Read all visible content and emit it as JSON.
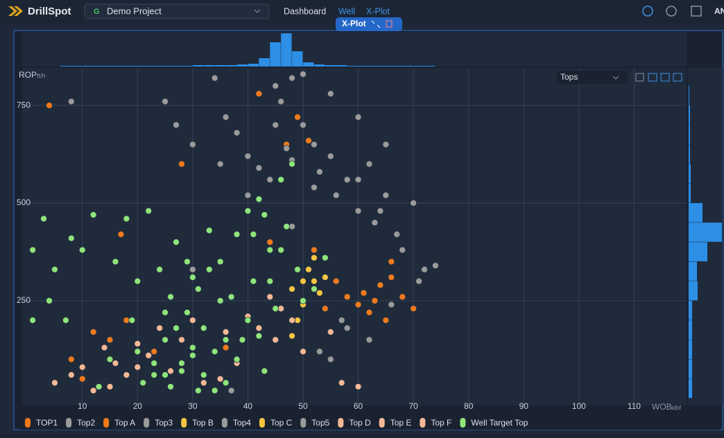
{
  "app": {
    "logo": "DrillSpot",
    "project_badge": "G",
    "project": "Demo Project",
    "nav": [
      "Dashboard",
      "Well",
      "X-Plot"
    ],
    "user": "AN"
  },
  "panel": {
    "tab": "X-Plot",
    "dropdown": "Tops"
  },
  "chart_data": {
    "type": "scatter",
    "x_label": "WOB",
    "x_unit": "klbf",
    "y_label": "ROP",
    "y_unit": "ft/h",
    "xlim": [
      -0.9,
      119.5
    ],
    "ylim": [
      -18,
      846
    ],
    "xticks": [
      10,
      20,
      30,
      40,
      50,
      60,
      70,
      80,
      90,
      100,
      110
    ],
    "yticks": [
      250,
      500,
      750
    ],
    "grid": true,
    "series": [
      {
        "name": "TOP1",
        "color": "#f07a1a",
        "x": [
          50,
          52,
          54,
          56,
          58,
          60,
          61,
          62,
          63,
          64,
          65,
          66,
          68,
          70,
          72,
          45,
          47,
          49,
          51,
          4,
          42,
          28,
          17
        ],
        "values": [
          250,
          280,
          230,
          300,
          260,
          240,
          270,
          220,
          250,
          290,
          200,
          310,
          260,
          230,
          330,
          700,
          650,
          720,
          660,
          750,
          780,
          600,
          420
        ]
      },
      {
        "name": "Top2",
        "color": "#9b9b9b",
        "x": [
          25,
          27,
          30,
          34,
          36,
          38,
          40,
          42,
          44,
          45,
          46,
          47,
          48,
          50,
          52,
          53,
          55,
          56,
          58,
          60,
          62,
          63,
          65,
          67,
          68,
          70,
          71,
          72,
          74,
          45,
          50,
          55,
          60,
          65,
          40,
          35,
          8,
          57,
          48,
          52
        ],
        "values": [
          760,
          700,
          650,
          820,
          720,
          680,
          620,
          590,
          560,
          700,
          760,
          640,
          610,
          700,
          650,
          580,
          620,
          520,
          560,
          480,
          600,
          450,
          520,
          420,
          380,
          500,
          300,
          330,
          340,
          800,
          830,
          780,
          720,
          650,
          520,
          600,
          760,
          200,
          440,
          540
        ]
      },
      {
        "name": "Top A",
        "color": "#f07a1a",
        "x": [
          8,
          10,
          12,
          15,
          18,
          23,
          36,
          44,
          52,
          66
        ],
        "values": [
          100,
          50,
          170,
          150,
          200,
          120,
          130,
          400,
          380,
          350
        ]
      },
      {
        "name": "Top3",
        "color": "#9b9b9b",
        "x": [
          55,
          58,
          62,
          66,
          48
        ],
        "values": [
          100,
          180,
          150,
          240,
          820
        ]
      },
      {
        "name": "Top B",
        "color": "#f5c542",
        "x": [
          48,
          50
        ],
        "values": [
          280,
          300
        ]
      },
      {
        "name": "Top4",
        "color": "#9b9b9b",
        "x": [
          60,
          64,
          53
        ],
        "values": [
          560,
          480,
          120
        ]
      },
      {
        "name": "Top C",
        "color": "#f5c542",
        "x": [
          51,
          52,
          53,
          50,
          49,
          52,
          54,
          48
        ],
        "values": [
          330,
          300,
          270,
          240,
          200,
          360,
          310,
          160
        ]
      },
      {
        "name": "Top5",
        "color": "#9b9b9b",
        "x": [
          30,
          37,
          57
        ],
        "values": [
          330,
          20,
          40
        ]
      },
      {
        "name": "Top D",
        "color": "#f5b895",
        "x": [
          5,
          8,
          10,
          12,
          14,
          16,
          18,
          20,
          22,
          24,
          26,
          28,
          30,
          32,
          34,
          36,
          38,
          40,
          42,
          44,
          46,
          48,
          50,
          60,
          57
        ],
        "values": [
          40,
          60,
          80,
          20,
          130,
          90,
          60,
          140,
          110,
          180,
          70,
          150,
          200,
          40,
          120,
          170,
          90,
          210,
          180,
          260,
          230,
          200,
          120,
          30,
          40
        ]
      },
      {
        "name": "Top E",
        "color": "#f5b895",
        "x": [
          15,
          25,
          35,
          45
        ],
        "values": [
          30,
          60,
          50,
          150
        ]
      },
      {
        "name": "Top F",
        "color": "#f5b895",
        "x": [
          20,
          38,
          55
        ],
        "values": [
          80,
          100,
          170
        ]
      },
      {
        "name": "Well Target Top",
        "color": "#8ee67a",
        "x": [
          3,
          4,
          5,
          7,
          8,
          10,
          12,
          13,
          15,
          16,
          18,
          19,
          20,
          22,
          23,
          24,
          25,
          26,
          27,
          28,
          29,
          30,
          31,
          32,
          33,
          34,
          35,
          36,
          37,
          38,
          39,
          40,
          41,
          42,
          43,
          44,
          45,
          46,
          47,
          48,
          49,
          50,
          52,
          54,
          1,
          1,
          20,
          25,
          30,
          21,
          23,
          26,
          28,
          30,
          32,
          34,
          36,
          38,
          40,
          42,
          44,
          46,
          35,
          33,
          31,
          29,
          27,
          25,
          41,
          43
        ],
        "values": [
          460,
          250,
          330,
          200,
          410,
          380,
          470,
          30,
          100,
          350,
          460,
          200,
          120,
          480,
          60,
          330,
          150,
          260,
          400,
          90,
          220,
          310,
          20,
          180,
          430,
          120,
          350,
          40,
          260,
          420,
          150,
          480,
          300,
          510,
          70,
          380,
          230,
          560,
          440,
          600,
          330,
          250,
          280,
          360,
          200,
          380,
          300,
          60,
          130,
          40,
          90,
          30,
          70,
          110,
          60,
          20,
          150,
          100,
          200,
          160,
          300,
          380,
          250,
          330,
          280,
          350,
          180,
          220,
          420,
          470
        ]
      }
    ],
    "x_histogram": {
      "color": "#2d8fe6",
      "bins": [
        6,
        8,
        10,
        12,
        14,
        16,
        18,
        20,
        22,
        24,
        26,
        28,
        30,
        32,
        34,
        36,
        38,
        40,
        42,
        44,
        46,
        48,
        50,
        52,
        54,
        56,
        58,
        60,
        62,
        64,
        66,
        68,
        70,
        72,
        74
      ],
      "counts": [
        1,
        1,
        1,
        1,
        1,
        1,
        1,
        1,
        1,
        1,
        1,
        1,
        2,
        2,
        2,
        2,
        3,
        4,
        12,
        35,
        48,
        22,
        6,
        3,
        2,
        2,
        1,
        1,
        1,
        1,
        1,
        1,
        1,
        1
      ]
    },
    "y_histogram": {
      "color": "#2d8fe6",
      "bins": [
        0,
        50,
        100,
        150,
        200,
        250,
        300,
        350,
        400,
        450,
        500,
        550,
        600,
        650,
        700,
        750,
        800,
        850
      ],
      "counts": [
        5,
        5,
        5,
        5,
        5,
        13,
        12,
        27,
        48,
        20,
        3,
        3,
        2,
        2,
        2,
        1,
        0
      ]
    }
  }
}
